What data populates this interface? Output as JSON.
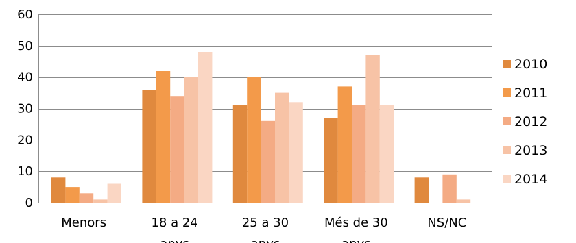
{
  "chart_data": {
    "type": "bar",
    "categories": [
      [
        "Menors"
      ],
      [
        "18 a 24",
        "anys"
      ],
      [
        "25 a 30",
        "anys"
      ],
      [
        "Més de 30",
        "anys"
      ],
      [
        "NS/NC"
      ]
    ],
    "series": [
      {
        "name": "2010",
        "color": "#e0893e",
        "values": [
          8,
          36,
          31,
          27,
          8
        ]
      },
      {
        "name": "2011",
        "color": "#f39a4a",
        "values": [
          5,
          42,
          40,
          37,
          0
        ]
      },
      {
        "name": "2012",
        "color": "#f4ab84",
        "values": [
          3,
          34,
          26,
          31,
          9
        ]
      },
      {
        "name": "2013",
        "color": "#f7c3a6",
        "values": [
          1,
          40,
          35,
          47,
          1
        ]
      },
      {
        "name": "2014",
        "color": "#fad6c3",
        "values": [
          6,
          48,
          32,
          31,
          0
        ]
      }
    ],
    "ylim": [
      0,
      60
    ],
    "yticks": [
      0,
      10,
      20,
      30,
      40,
      50,
      60
    ],
    "grid": true,
    "legend": "right"
  }
}
